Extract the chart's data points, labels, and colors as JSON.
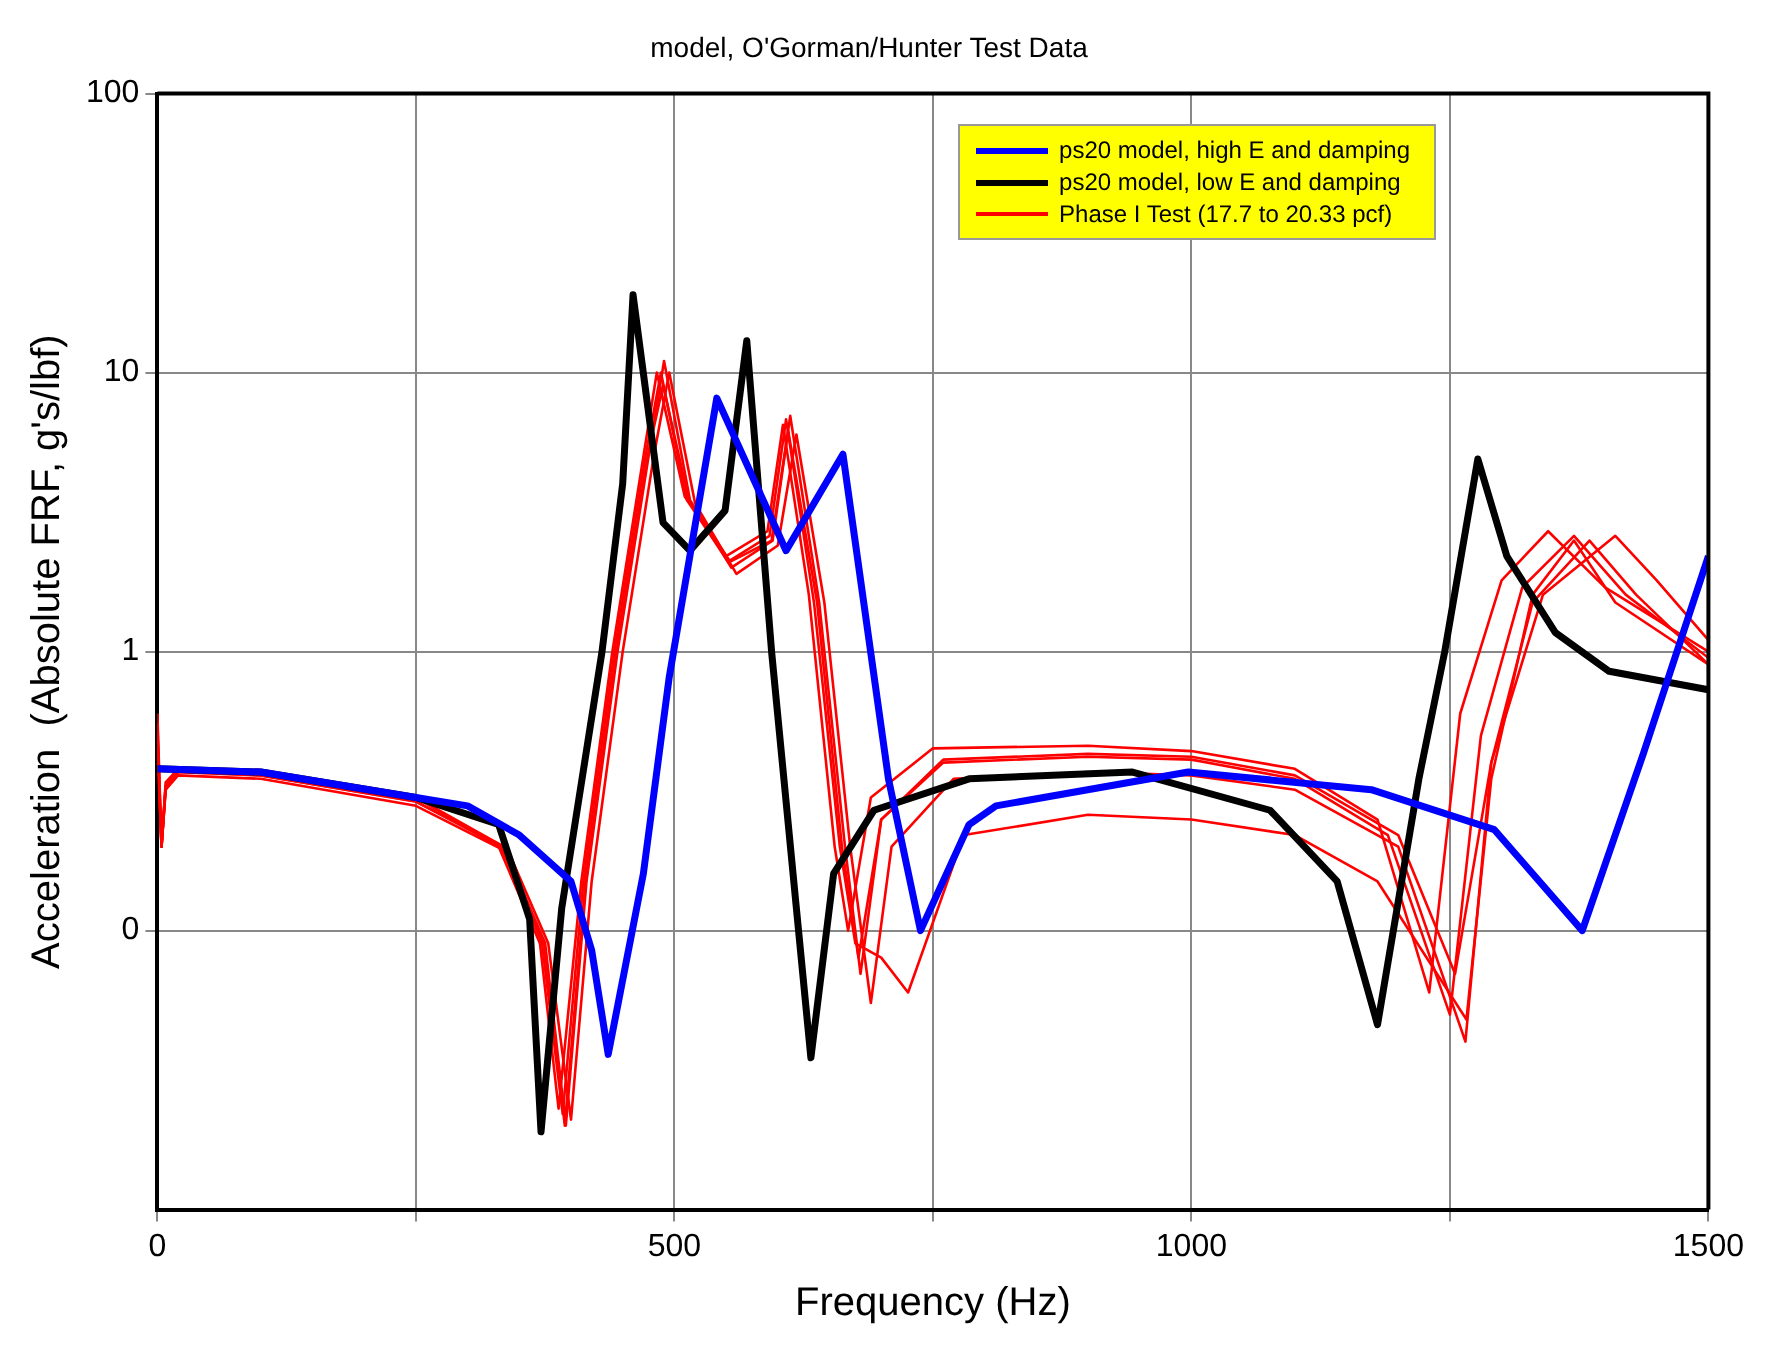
{
  "chart_data": {
    "type": "line",
    "title": "model, O'Gorman/Hunter Test Data",
    "xlabel": "Frequency (Hz)",
    "ylabel": "Acceleration  (Absolute FRF, g's/lbf)",
    "xlim": [
      0,
      1500
    ],
    "xticks": [
      0,
      {
        "value": 250,
        "label": null
      },
      500,
      {
        "value": 750,
        "label": null
      },
      1000,
      {
        "value": 1250,
        "label": null
      },
      1500
    ],
    "ylim": [
      0.01,
      100
    ],
    "yticks": [
      {
        "value": 0.1,
        "label": "0"
      },
      1,
      10,
      100
    ],
    "log": true,
    "grid": true,
    "legend": "top right",
    "marker": "none",
    "line_style": "solid",
    "series": [
      {
        "name": "ps20 model, high E and damping",
        "color": "#0000ff",
        "x": [
          0,
          100,
          250,
          300,
          350,
          400,
          420,
          436,
          470,
          495,
          541,
          608,
          663,
          707,
          738,
          785,
          811,
          997,
          1174,
          1293,
          1378,
          1437,
          1500
        ],
        "values": [
          0.38,
          0.37,
          0.3,
          0.28,
          0.22,
          0.15,
          0.085,
          0.036,
          0.16,
          0.81,
          8.1,
          2.3,
          5.1,
          0.35,
          0.1,
          0.24,
          0.28,
          0.37,
          0.32,
          0.23,
          0.1,
          0.43,
          2.2
        ]
      },
      {
        "name": "ps20 model, low E and damping",
        "color": "#000000",
        "x": [
          0,
          100,
          250,
          330,
          360,
          371,
          391,
          430,
          450,
          460,
          489,
          515,
          549,
          570,
          594,
          618,
          632,
          654,
          693,
          785,
          943,
          1076,
          1141,
          1180,
          1220,
          1245,
          1277,
          1305,
          1352,
          1404,
          1500
        ],
        "values": [
          0.38,
          0.37,
          0.3,
          0.24,
          0.11,
          0.019,
          0.12,
          1.0,
          4.0,
          19,
          2.9,
          2.3,
          3.2,
          13,
          1.0,
          0.12,
          0.035,
          0.16,
          0.27,
          0.35,
          0.37,
          0.27,
          0.15,
          0.046,
          0.35,
          1.0,
          4.9,
          2.2,
          1.17,
          0.85,
          0.73
        ]
      },
      {
        "name": "Phase I Test (17.7 to 20.33 pcf)",
        "color": "#ff0000",
        "x": [
          0,
          4,
          8,
          20,
          100,
          250,
          330,
          370,
          388,
          410,
          440,
          470,
          483,
          510,
          550,
          590,
          605,
          630,
          655,
          668,
          690,
          750,
          900,
          1000,
          1100,
          1180,
          1230,
          1260,
          1300,
          1345,
          1400,
          1500
        ],
        "values": [
          0.6,
          0.2,
          0.33,
          0.38,
          0.37,
          0.3,
          0.2,
          0.09,
          0.023,
          0.15,
          1.0,
          5,
          10,
          3.6,
          2.2,
          2.7,
          6.5,
          1.6,
          0.2,
          0.1,
          0.3,
          0.45,
          0.46,
          0.44,
          0.38,
          0.25,
          0.06,
          0.6,
          1.8,
          2.7,
          1.7,
          1.0
        ]
      },
      {
        "color": "#ff0000",
        "x": [
          0,
          4,
          8,
          20,
          100,
          250,
          335,
          375,
          395,
          415,
          445,
          475,
          490,
          515,
          555,
          595,
          612,
          640,
          665,
          680,
          700,
          760,
          900,
          1000,
          1100,
          1190,
          1250,
          1280,
          1320,
          1370,
          1420,
          1500
        ],
        "values": [
          0.5,
          0.2,
          0.32,
          0.37,
          0.36,
          0.29,
          0.2,
          0.09,
          0.02,
          0.15,
          1.0,
          5,
          11,
          3.5,
          2.0,
          2.5,
          7,
          1.5,
          0.2,
          0.07,
          0.25,
          0.4,
          0.42,
          0.41,
          0.35,
          0.22,
          0.05,
          0.5,
          1.7,
          2.6,
          1.6,
          0.95
        ]
      },
      {
        "color": "#ff0000",
        "x": [
          0,
          4,
          8,
          20,
          100,
          250,
          340,
          378,
          400,
          420,
          450,
          480,
          495,
          520,
          560,
          600,
          618,
          645,
          670,
          690,
          710,
          770,
          900,
          1000,
          1100,
          1200,
          1265,
          1290,
          1330,
          1385,
          1430,
          1500
        ],
        "values": [
          0.45,
          0.2,
          0.32,
          0.36,
          0.35,
          0.28,
          0.19,
          0.09,
          0.021,
          0.15,
          1.0,
          5,
          10,
          3.4,
          1.9,
          2.4,
          6,
          1.5,
          0.2,
          0.055,
          0.2,
          0.35,
          0.37,
          0.36,
          0.32,
          0.2,
          0.04,
          0.4,
          1.5,
          2.5,
          1.6,
          0.9
        ]
      },
      {
        "color": "#ff0000",
        "x": [
          0,
          4,
          8,
          20,
          100,
          250,
          335,
          372,
          392,
          412,
          442,
          472,
          487,
          512,
          552,
          592,
          608,
          635,
          660,
          675,
          700,
          726,
          780,
          900,
          1000,
          1100,
          1180,
          1266,
          1290,
          1330,
          1370,
          1410,
          1500
        ],
        "values": [
          0.55,
          0.2,
          0.34,
          0.38,
          0.37,
          0.3,
          0.2,
          0.09,
          0.022,
          0.15,
          1.0,
          5,
          10,
          3.5,
          2.1,
          2.6,
          6.8,
          1.5,
          0.2,
          0.09,
          0.08,
          0.06,
          0.22,
          0.26,
          0.25,
          0.22,
          0.15,
          0.048,
          0.35,
          1.6,
          2.5,
          1.5,
          0.9
        ]
      },
      {
        "color": "#ff0000",
        "x": [
          0,
          4,
          8,
          20,
          100,
          250,
          332,
          374,
          394,
          414,
          444,
          474,
          489,
          514,
          554,
          594,
          610,
          638,
          662,
          678,
          700,
          760,
          900,
          1000,
          1100,
          1200,
          1255,
          1290,
          1340,
          1410,
          1450,
          1500
        ],
        "values": [
          0.5,
          0.2,
          0.33,
          0.37,
          0.36,
          0.29,
          0.2,
          0.09,
          0.02,
          0.15,
          1.0,
          5,
          9,
          3.5,
          2.1,
          2.5,
          6.2,
          1.5,
          0.2,
          0.08,
          0.25,
          0.41,
          0.43,
          0.42,
          0.36,
          0.22,
          0.07,
          0.4,
          1.6,
          2.6,
          1.8,
          1.1
        ]
      }
    ]
  }
}
